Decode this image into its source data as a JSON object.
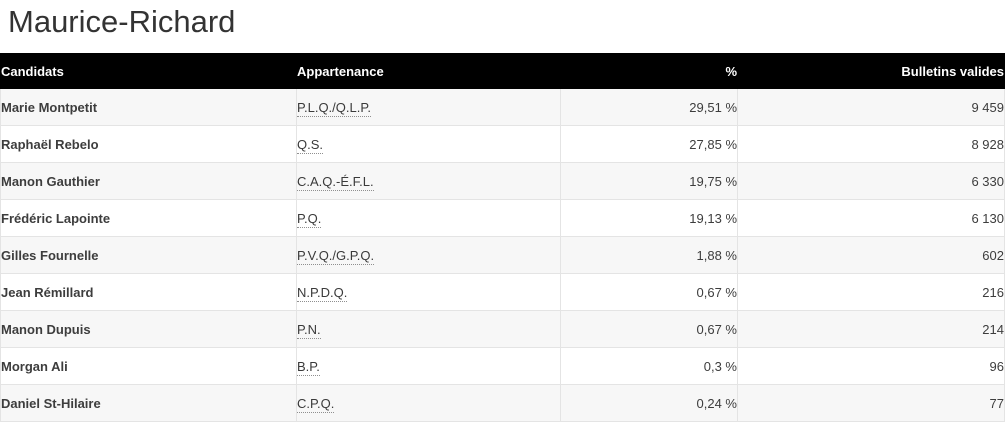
{
  "page": {
    "title": "Maurice-Richard"
  },
  "colors": {
    "header_background": "#000000",
    "header_text": "#ffffff",
    "odd_row_background": "#f7f7f7",
    "even_row_background": "#ffffff",
    "row_border": "#e4e4e4",
    "title_text": "#333333",
    "cell_text": "#3d3d3d"
  },
  "table": {
    "columns": [
      {
        "label": "Candidats",
        "align": "left"
      },
      {
        "label": "Appartenance",
        "align": "left"
      },
      {
        "label": "%",
        "align": "right"
      },
      {
        "label": "Bulletins valides",
        "align": "right"
      }
    ],
    "rows": [
      {
        "candidate": "Marie Montpetit",
        "party": "P.L.Q./Q.L.P.",
        "percent": "29,51 %",
        "votes": "9 459"
      },
      {
        "candidate": "Raphaël Rebelo",
        "party": "Q.S.",
        "percent": "27,85 %",
        "votes": "8 928"
      },
      {
        "candidate": "Manon Gauthier",
        "party": "C.A.Q.-É.F.L.",
        "percent": "19,75 %",
        "votes": "6 330"
      },
      {
        "candidate": "Frédéric Lapointe",
        "party": "P.Q.",
        "percent": "19,13 %",
        "votes": "6 130"
      },
      {
        "candidate": "Gilles Fournelle",
        "party": "P.V.Q./G.P.Q.",
        "percent": "1,88 %",
        "votes": "602"
      },
      {
        "candidate": "Jean Rémillard",
        "party": "N.P.D.Q.",
        "percent": "0,67 %",
        "votes": "216"
      },
      {
        "candidate": "Manon Dupuis",
        "party": "P.N.",
        "percent": "0,67 %",
        "votes": "214"
      },
      {
        "candidate": "Morgan Ali",
        "party": "B.P.",
        "percent": "0,3 %",
        "votes": "96"
      },
      {
        "candidate": "Daniel St-Hilaire",
        "party": "C.P.Q.",
        "percent": "0,24 %",
        "votes": "77"
      }
    ]
  }
}
